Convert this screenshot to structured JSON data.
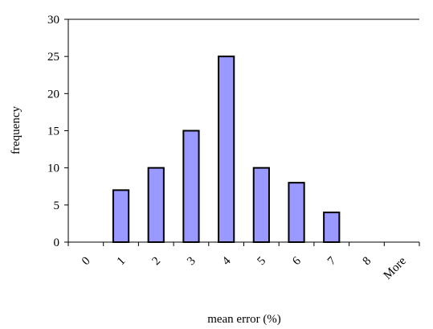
{
  "chart_data": {
    "type": "bar",
    "title": "",
    "xlabel": "mean error (%)",
    "ylabel": "frequency",
    "categories": [
      "0",
      "1",
      "2",
      "3",
      "4",
      "5",
      "6",
      "7",
      "8",
      "More"
    ],
    "values": [
      0,
      7,
      10,
      15,
      25,
      10,
      8,
      4,
      0,
      0
    ],
    "ylim": [
      0,
      30
    ],
    "yticks": [
      "0",
      "5",
      "10",
      "15",
      "20",
      "25",
      "30"
    ],
    "grid": "top border line only",
    "legend": "none",
    "colors": {
      "bar_fill": "#9999ff",
      "bar_stroke": "#000000",
      "axis": "#000000",
      "top_line": "#808080"
    }
  }
}
